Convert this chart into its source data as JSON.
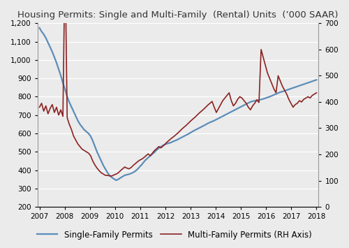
{
  "title": "Housing Permits: Single and Multi-Family  (Rental) Units  (’000 SAAR)",
  "single_family": [
    1175,
    1155,
    1140,
    1120,
    1095,
    1070,
    1045,
    1015,
    985,
    950,
    915,
    875,
    840,
    800,
    770,
    745,
    720,
    695,
    670,
    650,
    635,
    620,
    610,
    600,
    585,
    560,
    530,
    500,
    475,
    450,
    425,
    405,
    385,
    370,
    360,
    352,
    345,
    350,
    358,
    365,
    372,
    375,
    378,
    382,
    388,
    395,
    405,
    418,
    430,
    445,
    458,
    468,
    478,
    488,
    498,
    510,
    520,
    528,
    535,
    540,
    545,
    548,
    552,
    558,
    562,
    568,
    574,
    580,
    586,
    592,
    598,
    605,
    612,
    618,
    624,
    630,
    636,
    642,
    648,
    655,
    660,
    665,
    670,
    676,
    682,
    688,
    694,
    700,
    706,
    712,
    718,
    724,
    730,
    736,
    742,
    748,
    754,
    760,
    766,
    772,
    775,
    778,
    780,
    782,
    785,
    788,
    792,
    796,
    800,
    805,
    810,
    815,
    820,
    825,
    828,
    832,
    836,
    840,
    844,
    848,
    852,
    856,
    860,
    864,
    868,
    872,
    876,
    880,
    884,
    888,
    892
  ],
  "multi_family": [
    380,
    395,
    365,
    385,
    355,
    375,
    390,
    360,
    380,
    350,
    370,
    345,
    960,
    340,
    315,
    295,
    270,
    255,
    240,
    230,
    220,
    215,
    210,
    205,
    195,
    175,
    160,
    148,
    138,
    130,
    125,
    120,
    120,
    118,
    118,
    122,
    125,
    130,
    138,
    145,
    152,
    148,
    145,
    150,
    158,
    165,
    172,
    178,
    182,
    188,
    195,
    202,
    195,
    205,
    215,
    222,
    230,
    225,
    232,
    240,
    248,
    255,
    262,
    268,
    275,
    282,
    290,
    298,
    305,
    312,
    320,
    328,
    335,
    342,
    350,
    358,
    365,
    372,
    380,
    388,
    395,
    402,
    380,
    360,
    375,
    390,
    405,
    415,
    425,
    435,
    405,
    385,
    395,
    410,
    420,
    415,
    405,
    395,
    380,
    370,
    385,
    395,
    408,
    398,
    600,
    570,
    540,
    510,
    490,
    470,
    450,
    435,
    500,
    480,
    460,
    445,
    430,
    410,
    395,
    380,
    390,
    395,
    405,
    400,
    410,
    415,
    420,
    415,
    425,
    430,
    435
  ],
  "single_color": "#5B8DB8",
  "multi_color": "#8B2222",
  "bg_color": "#EBEBEB",
  "grid_color": "#FFFFFF",
  "ylim_left": [
    200,
    1200
  ],
  "ylim_right": [
    0,
    700
  ],
  "yticks_left": [
    200,
    300,
    400,
    500,
    600,
    700,
    800,
    900,
    1000,
    1100,
    1200
  ],
  "yticks_right": [
    0,
    100,
    200,
    300,
    400,
    500,
    600,
    700
  ],
  "x_start_year": 2007.0,
  "x_end_year": 2018.0,
  "xticks": [
    2007,
    2008,
    2009,
    2010,
    2011,
    2012,
    2013,
    2014,
    2015,
    2016,
    2017,
    2018
  ],
  "legend_single": "Single-Family Permits",
  "legend_multi": "Multi-Family Permits (RH Axis)",
  "title_fontsize": 9.5,
  "tick_fontsize": 7.5,
  "legend_fontsize": 8.5,
  "linewidth_single": 1.6,
  "linewidth_multi": 1.2
}
